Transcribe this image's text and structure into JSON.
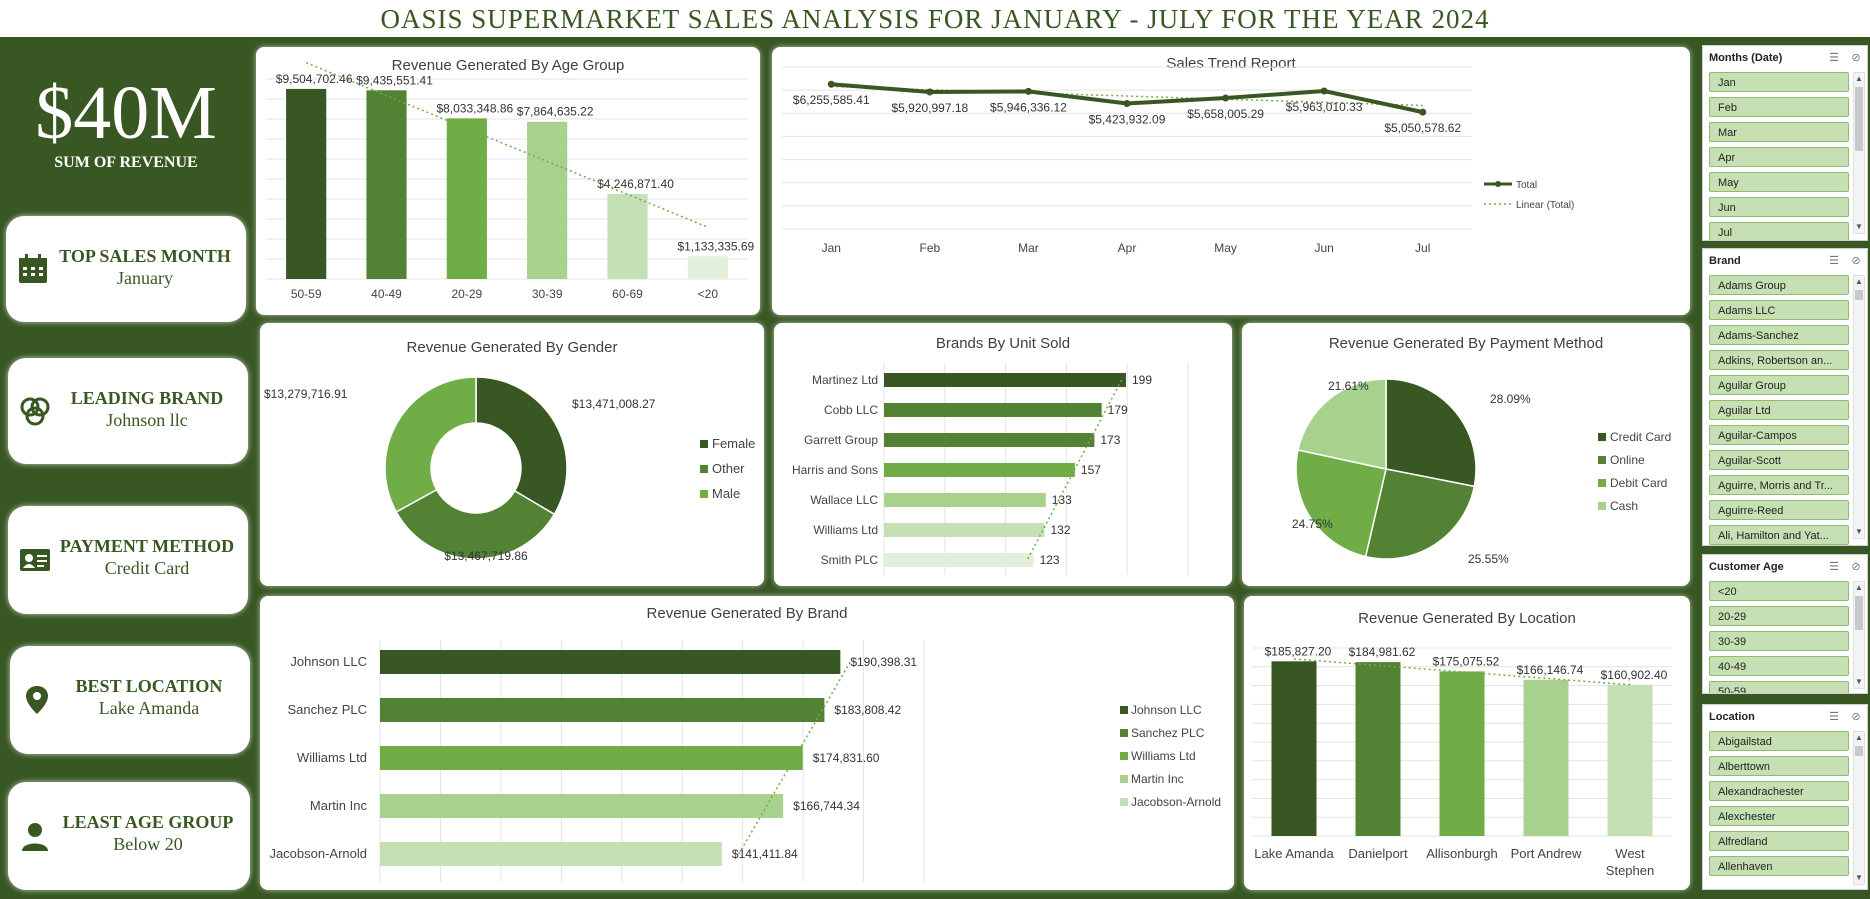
{
  "title": "OASIS SUPERMARKET SALES ANALYSIS FOR JANUARY - JULY FOR THE YEAR 2024",
  "kpi_total": {
    "value": "$40M",
    "label": "SUM OF REVENUE"
  },
  "kpis": [
    {
      "label": "TOP SALES MONTH",
      "value": "January",
      "icon": "calendar-icon"
    },
    {
      "label": "LEADING BRAND",
      "value": "Johnson llc",
      "icon": "venn-diagram-icon"
    },
    {
      "label": "PAYMENT METHOD",
      "value": "Credit Card",
      "icon": "id-card-icon"
    },
    {
      "label": "BEST LOCATION",
      "value": "Lake Amanda",
      "icon": "map-pin-icon"
    },
    {
      "label": "LEAST AGE GROUP",
      "value": "Below 20",
      "icon": "person-icon"
    }
  ],
  "colors": {
    "dark": "#385723",
    "mid": "#548235",
    "green": "#70ad47",
    "light": "#a9d18e",
    "lighter": "#c5e0b4",
    "lightest": "#e2efda"
  },
  "chart_data": [
    {
      "id": "age",
      "type": "bar",
      "title": "Revenue Generated By Age Group",
      "categories": [
        "50-59",
        "40-49",
        "20-29",
        "30-39",
        "60-69",
        "<20"
      ],
      "values": [
        9504702.46,
        9435551.41,
        8033348.86,
        7864635.22,
        4246871.4,
        1133335.69
      ],
      "labels": [
        "$9,504,702.46",
        "$9,435,551.41",
        "$8,033,348.86",
        "$7,864,635.22",
        "$4,246,871.40",
        "$1,133,335.69"
      ],
      "trendline": "linear"
    },
    {
      "id": "trend",
      "type": "line",
      "title": "Sales Trend Report",
      "categories": [
        "Jan",
        "Feb",
        "Mar",
        "Apr",
        "May",
        "Jun",
        "Jul"
      ],
      "series": [
        {
          "name": "Total",
          "values": [
            6255585.41,
            5920997.18,
            5946336.12,
            5423932.09,
            5658005.29,
            5963010.33,
            5050578.62
          ]
        }
      ],
      "labels": [
        "$6,255,585.41",
        "$5,920,997.18",
        "$5,946,336.12",
        "$5,423,932.09",
        "$5,658,005.29",
        "$5,963,010.33",
        "$5,050,578.62"
      ],
      "legend": [
        "Total",
        "Linear (Total)"
      ],
      "legend_position": "right"
    },
    {
      "id": "gender",
      "type": "pie",
      "subtype": "doughnut",
      "title": "Revenue Generated By Gender",
      "categories": [
        "Female",
        "Other",
        "Male"
      ],
      "values": [
        13471008.27,
        13467719.86,
        13279716.91
      ],
      "labels": [
        "$13,471,008.27",
        "$13,467,719.86",
        "$13,279,716.91"
      ],
      "legend_position": "right"
    },
    {
      "id": "units",
      "type": "bar",
      "orientation": "horizontal",
      "title": "Brands By Unit Sold",
      "categories": [
        "Martinez Ltd",
        "Cobb LLC",
        "Garrett Group",
        "Harris and Sons",
        "Wallace LLC",
        "Williams Ltd",
        "Smith PLC"
      ],
      "values": [
        199,
        179,
        173,
        157,
        133,
        132,
        123
      ],
      "trendline": "linear"
    },
    {
      "id": "payment",
      "type": "pie",
      "title": "Revenue Generated By Payment Method",
      "categories": [
        "Credit Card",
        "Online",
        "Debit Card",
        "Cash"
      ],
      "values": [
        28.09,
        25.55,
        24.75,
        21.61
      ],
      "labels": [
        "28.09%",
        "25.55%",
        "24.75%",
        "21.61%"
      ],
      "legend_position": "right"
    },
    {
      "id": "brand",
      "type": "bar",
      "orientation": "horizontal",
      "title": "Revenue Generated By Brand",
      "categories": [
        "Johnson LLC",
        "Sanchez PLC",
        "Williams Ltd",
        "Martin Inc",
        "Jacobson-Arnold"
      ],
      "values": [
        190398.31,
        183808.42,
        174831.6,
        166744.34,
        141411.84
      ],
      "labels": [
        "$190,398.31",
        "$183,808.42",
        "$174,831.60",
        "$166,744.34",
        "$141,411.84"
      ],
      "legend_position": "right",
      "trendline": "linear"
    },
    {
      "id": "location",
      "type": "bar",
      "title": "Revenue Generated By Location",
      "categories": [
        "Lake Amanda",
        "Danielport",
        "Allisonburgh",
        "Port Andrew",
        "West Stephen"
      ],
      "values": [
        185827.2,
        184981.62,
        175075.52,
        166146.74,
        160902.4
      ],
      "labels": [
        "$185,827.20",
        "$184,981.62",
        "$175,075.52",
        "$166,146.74",
        "$160,902.40"
      ],
      "trendline": "linear"
    }
  ],
  "slicers": [
    {
      "title": "Months (Date)",
      "items": [
        "Jan",
        "Feb",
        "Mar",
        "Apr",
        "May",
        "Jun",
        "Jul"
      ]
    },
    {
      "title": "Brand",
      "items": [
        "Adams Group",
        "Adams LLC",
        "Adams-Sanchez",
        "Adkins, Robertson an...",
        "Aguilar Group",
        "Aguilar Ltd",
        "Aguilar-Campos",
        "Aguilar-Scott",
        "Aguirre, Morris and Tr...",
        "Aguirre-Reed",
        "Ali, Hamilton and Yat..."
      ]
    },
    {
      "title": "Customer Age",
      "items": [
        "<20",
        "20-29",
        "30-39",
        "40-49",
        "50-59"
      ]
    },
    {
      "title": "Location",
      "items": [
        "Abigailstad",
        "Alberttown",
        "Alexandrachester",
        "Alexchester",
        "Alfredland",
        "Allenhaven"
      ]
    }
  ]
}
